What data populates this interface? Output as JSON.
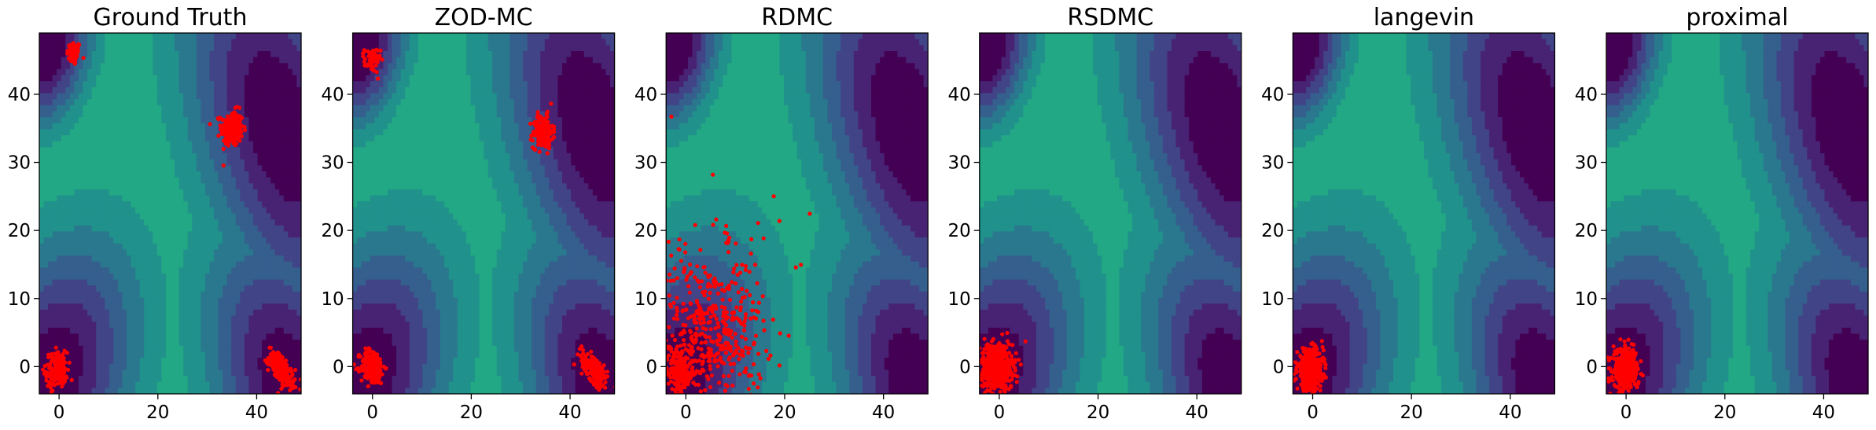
{
  "figure": {
    "background": "#ffffff"
  },
  "colormap": [
    "#440154",
    "#482374",
    "#414487",
    "#355f8d",
    "#2a788e",
    "#21918c",
    "#22a884",
    "#44bf70",
    "#7ad151",
    "#bddf26",
    "#fde725"
  ],
  "sample_color": "#ff0000",
  "chart_data": [
    {
      "type": "scatter",
      "title": "Ground Truth",
      "xlim": [
        -4,
        49
      ],
      "ylim": [
        -4,
        49
      ],
      "xticks": [
        0,
        20,
        40
      ],
      "yticks": [
        0,
        10,
        20,
        30,
        40
      ],
      "show_yticklabels": true,
      "background": "contour",
      "clusters": [
        {
          "center": [
            3,
            46
          ],
          "spread": [
            0.7,
            0.9
          ],
          "n": 60
        },
        {
          "center": [
            35,
            35
          ],
          "spread": [
            1.1,
            1.3
          ],
          "n": 220
        },
        {
          "center": [
            -0.5,
            -0.5
          ],
          "spread": [
            1.1,
            1.3
          ],
          "n": 160
        },
        {
          "center": [
            45,
            -0.5
          ],
          "spread": [
            1.3,
            1.0
          ],
          "n": 200,
          "tilt": -0.7
        }
      ]
    },
    {
      "type": "scatter",
      "title": "ZOD-MC",
      "xlim": [
        -4,
        49
      ],
      "ylim": [
        -4,
        49
      ],
      "xticks": [
        0,
        20,
        40
      ],
      "yticks": [
        0,
        10,
        20,
        30,
        40
      ],
      "show_yticklabels": true,
      "background": "contour",
      "clusters": [
        {
          "center": [
            0,
            45
          ],
          "spread": [
            0.8,
            0.9
          ],
          "n": 60
        },
        {
          "center": [
            34.5,
            34.5
          ],
          "spread": [
            1.0,
            1.2
          ],
          "n": 200
        },
        {
          "center": [
            0,
            0
          ],
          "spread": [
            1.2,
            1.3
          ],
          "n": 200
        },
        {
          "center": [
            45,
            -0.5
          ],
          "spread": [
            1.3,
            1.0
          ],
          "n": 170,
          "tilt": -0.7
        }
      ]
    },
    {
      "type": "scatter",
      "title": "RDMC",
      "xlim": [
        -4,
        49
      ],
      "ylim": [
        -4,
        49
      ],
      "xticks": [
        0,
        20,
        40
      ],
      "yticks": [
        0,
        10,
        20,
        30,
        40
      ],
      "show_yticklabels": true,
      "background": "contour",
      "clusters": [
        {
          "center": [
            -1,
            -1
          ],
          "spread": [
            1.3,
            1.3
          ],
          "n": 200
        },
        {
          "center": [
            5,
            5
          ],
          "spread": [
            5.5,
            5.5
          ],
          "n": 420
        },
        {
          "center": [
            5,
            12
          ],
          "spread": [
            7,
            9
          ],
          "n": 60
        }
      ]
    },
    {
      "type": "scatter",
      "title": "RSDMC",
      "xlim": [
        -4,
        49
      ],
      "ylim": [
        -4,
        49
      ],
      "xticks": [
        0,
        20,
        40
      ],
      "yticks": [
        0,
        10,
        20,
        30,
        40
      ],
      "show_yticklabels": true,
      "background": "contour",
      "clusters": [
        {
          "center": [
            -0.5,
            0
          ],
          "spread": [
            1.6,
            1.7
          ],
          "n": 550
        }
      ]
    },
    {
      "type": "scatter",
      "title": "langevin",
      "xlim": [
        -4,
        49
      ],
      "ylim": [
        -4,
        49
      ],
      "xticks": [
        0,
        20,
        40
      ],
      "yticks": [
        0,
        10,
        20,
        30,
        40
      ],
      "show_yticklabels": true,
      "background": "contour",
      "clusters": [
        {
          "center": [
            -0.5,
            -0.5
          ],
          "spread": [
            1.3,
            1.5
          ],
          "n": 450
        }
      ]
    },
    {
      "type": "scatter",
      "title": "proximal",
      "xlim": [
        -4,
        49
      ],
      "ylim": [
        -4,
        49
      ],
      "xticks": [
        0,
        20,
        40
      ],
      "yticks": [
        0,
        10,
        20,
        30,
        40
      ],
      "show_yticklabels": true,
      "background": "contour",
      "clusters": [
        {
          "center": [
            0,
            -0.5
          ],
          "spread": [
            1.3,
            1.5
          ],
          "n": 350
        }
      ]
    }
  ]
}
